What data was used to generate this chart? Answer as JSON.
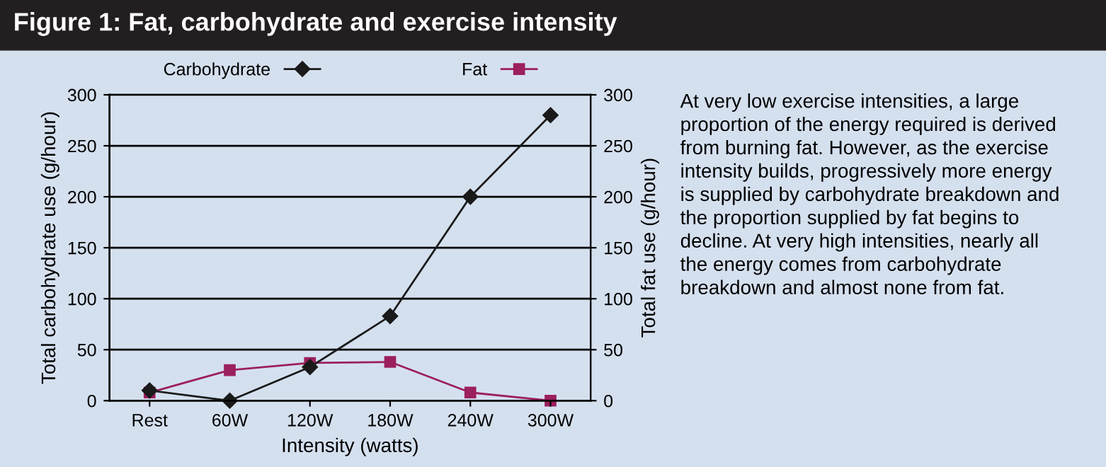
{
  "chart_data": {
    "type": "line",
    "title": "Figure 1: Fat, carbohydrate and exercise intensity",
    "xlabel": "Intensity (watts)",
    "ylabel": "Total carbohydrate use (g/hour)",
    "y2label": "Total fat use (g/hour)",
    "categories": [
      "Rest",
      "60W",
      "120W",
      "180W",
      "240W",
      "300W"
    ],
    "series": [
      {
        "name": "Carbohydrate",
        "color": "#1a1a1a",
        "marker": "diamond",
        "values": [
          10,
          0,
          33,
          83,
          200,
          280
        ]
      },
      {
        "name": "Fat",
        "color": "#9c1f5e",
        "marker": "square",
        "axis": "y2",
        "values": [
          8,
          30,
          37,
          38,
          8,
          0
        ]
      }
    ],
    "ylim": [
      0,
      300
    ],
    "yticks": [
      0,
      50,
      100,
      150,
      200,
      250,
      300
    ],
    "y2lim": [
      0,
      300
    ],
    "y2ticks": [
      0,
      50,
      100,
      150,
      200,
      250,
      300
    ],
    "grid": "y",
    "legend": "top",
    "line_style": "solid",
    "annotations": [
      "At very low exercise intensities, a large\nproportion of the energy required is derived\nfrom burning fat. However, as the exercise\nintensity builds, progressively more energy\nis supplied by carbohydrate breakdown and\nthe proportion supplied by fat begins to\ndecline. At very high intensities, nearly all\nthe energy comes from carbohydrate\nbreakdown and almost none from fat."
    ]
  }
}
